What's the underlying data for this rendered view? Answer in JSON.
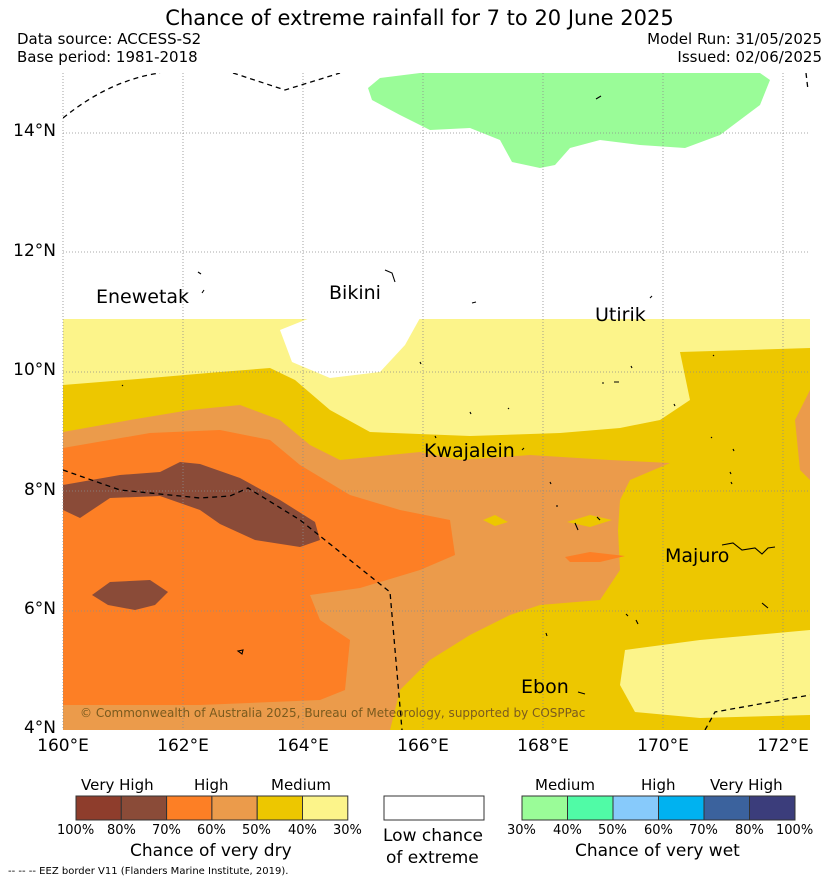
{
  "header": {
    "title": "Chance of extreme rainfall for 7 to 20 June 2025",
    "data_source": "Data source: ACCESS-S2",
    "base_period": "Base period: 1981-2018",
    "model_run": "Model Run: 31/05/2025",
    "issued": "Issued: 02/06/2025"
  },
  "map": {
    "lat_labels": [
      "14°N",
      "12°N",
      "10°N",
      "8°N",
      "6°N",
      "4°N"
    ],
    "lon_labels": [
      "160°E",
      "162°E",
      "164°E",
      "166°E",
      "168°E",
      "170°E",
      "172°E"
    ],
    "places": [
      "Enewetak",
      "Bikini",
      "Utirik",
      "Kwajalein",
      "Majuro",
      "Ebon"
    ],
    "copyright": "© Commonwealth of Australia 2025, Bureau of Meteorology, supported by COSPPac"
  },
  "legend": {
    "dry": {
      "heads": [
        "Very High",
        "High",
        "Medium"
      ],
      "ticks": [
        "100%",
        "80%",
        "70%",
        "60%",
        "50%",
        "40%",
        "30%"
      ],
      "caption": "Chance of very dry",
      "colors": [
        "#8e3d2c",
        "#8a4b38",
        "#fd7f25",
        "#eb9b4b",
        "#edc700",
        "#fcf48a"
      ]
    },
    "low": {
      "line1": "Low chance",
      "line2": "of extreme",
      "color": "#ffffff"
    },
    "wet": {
      "heads": [
        "Medium",
        "High",
        "Very High"
      ],
      "ticks": [
        "30%",
        "40%",
        "50%",
        "60%",
        "70%",
        "80%",
        "100%"
      ],
      "caption": "Chance of very wet",
      "colors": [
        "#9afc98",
        "#50fba6",
        "#87cafb",
        "#00b2f0",
        "#3b629d",
        "#3b3d7b"
      ]
    }
  },
  "footnote": "--  --  -- EEZ border V11 (Flanders Marine Institute, 2019)."
}
